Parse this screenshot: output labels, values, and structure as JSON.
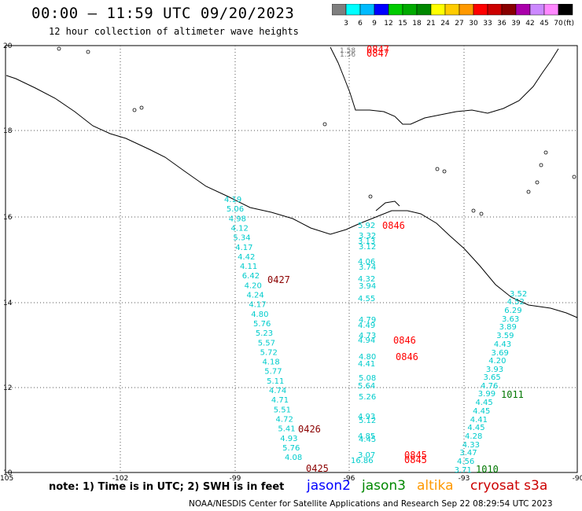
{
  "title": "00:00 – 11:59 UTC 09/20/2023",
  "subtitle": "12 hour collection of altimeter wave heights",
  "color_scale": {
    "ticks": [
      "3",
      "6",
      "9",
      "12",
      "15",
      "18",
      "21",
      "24",
      "27",
      "30",
      "33",
      "36",
      "39",
      "42",
      "45",
      "70"
    ],
    "unit": "(ft)",
    "colors": [
      "#7f7f7f",
      "#00ffff",
      "#00bbff",
      "#0000ff",
      "#00cc00",
      "#00aa00",
      "#008800",
      "#ffff00",
      "#ffcc00",
      "#ff9900",
      "#ff0000",
      "#cc0000",
      "#880000",
      "#aa00aa",
      "#cc88ff",
      "#ff88ff",
      "#000000"
    ]
  },
  "axes": {
    "lon_labels": [
      "-105",
      "-102",
      "-99",
      "-96",
      "-93",
      "-90"
    ],
    "lat_labels": [
      "20",
      "18",
      "16",
      "14",
      "12",
      "10"
    ]
  },
  "tracks": {
    "west": {
      "values": [
        "4.19",
        "5.06",
        "4.98",
        "4.12",
        "5.34",
        "4.17",
        "4.42",
        "4.11",
        "6.42",
        "4.20",
        "4.24",
        "4.17",
        "4.80",
        "5.76",
        "5.23",
        "5.57",
        "5.72",
        "4.18",
        "5.77",
        "5.11",
        "4.74",
        "4.71",
        "5.51",
        "4.72",
        "5.41",
        "4.93",
        "5.76",
        "4.08"
      ],
      "color": "#00cccc"
    },
    "middle": {
      "values": [
        "5.92",
        "3.32",
        "3.13",
        "3.12",
        "4.06",
        "3.74",
        "4.32",
        "3.94",
        "4.55",
        "4.79",
        "4.49",
        "4.73",
        "4.94",
        "4.80",
        "4.41",
        "5.08",
        "5.64",
        "5.26",
        "4.93",
        "5.12",
        "4.85",
        "4.45",
        "3.07",
        "16.86"
      ],
      "color": "#00cccc"
    },
    "east": {
      "values": [
        "3.52",
        "4.52",
        "6.29",
        "3.63",
        "3.89",
        "3.59",
        "4.43",
        "3.69",
        "4.20",
        "3.93",
        "3.65",
        "4.76",
        "3.99",
        "4.45",
        "4.45",
        "4.41",
        "4.45",
        "4.28",
        "4.33",
        "3.47",
        "4.56",
        "3.71"
      ],
      "color": "#00cccc"
    }
  },
  "time_labels": [
    {
      "text": "0427",
      "color": "#8b0000"
    },
    {
      "text": "0426",
      "color": "#8b0000"
    },
    {
      "text": "0425",
      "color": "#8b0000"
    },
    {
      "text": "0846",
      "color": "#ff0000"
    },
    {
      "text": "0846",
      "color": "#ff0000"
    },
    {
      "text": "0846",
      "color": "#ff0000"
    },
    {
      "text": "0845",
      "color": "#ff0000"
    },
    {
      "text": "0845",
      "color": "#ff0000"
    },
    {
      "text": "0847",
      "color": "#ff0000"
    },
    {
      "text": "0847",
      "color": "#ff0000"
    },
    {
      "text": "1011",
      "color": "#007700"
    },
    {
      "text": "1010",
      "color": "#007700"
    }
  ],
  "top_values": [
    "1.58",
    "1.56"
  ],
  "note": "note:  1) Time is in UTC;  2) SWH is in feet",
  "satellites": [
    {
      "name": "jason2",
      "color": "#0000ff"
    },
    {
      "name": "jason3",
      "color": "#008800"
    },
    {
      "name": "altika",
      "color": "#ff9900"
    },
    {
      "name": "cryosat s3a",
      "color": "#cc0000"
    }
  ],
  "credit": "NOAA/NESDIS Center for Satellite Applications and Research   Sep 22 08:29:54 UTC 2023"
}
